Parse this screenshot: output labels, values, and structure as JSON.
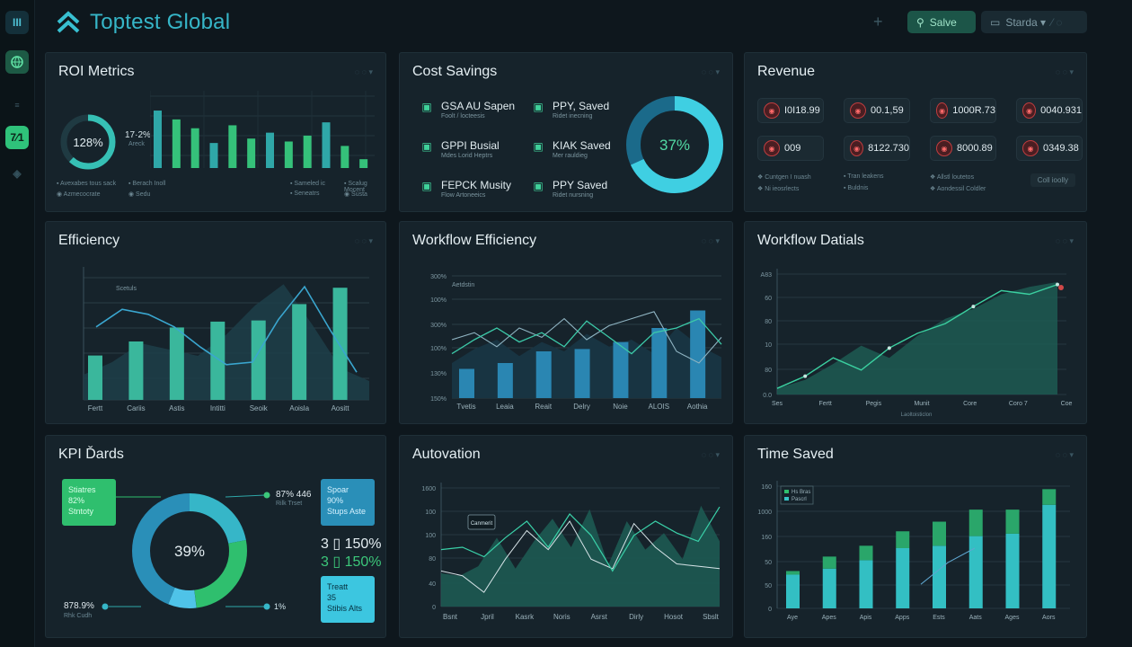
{
  "app": {
    "title": "Toptest Global"
  },
  "rail": {
    "items": [
      {
        "icon": "menu-icon",
        "label": "III"
      },
      {
        "icon": "globe-icon",
        "label": ""
      },
      {
        "icon": "list-icon",
        "label": ""
      },
      {
        "icon": "calendar-icon",
        "label": "7⁄1"
      },
      {
        "icon": "arrow-icon",
        "label": ""
      }
    ]
  },
  "toolbar": {
    "add_label": "+",
    "save_label": "Salve",
    "dropdown_label": "Starda ▾",
    "extra_label": "⁄ ◌"
  },
  "colors": {
    "accent": "#36b6c8",
    "green": "#3cc77a",
    "teal": "#2fa7a8",
    "panel": "#16232b",
    "bg": "#0e171d",
    "red": "#c03d3f"
  },
  "panels": {
    "roi": {
      "title": "ROI Metrics",
      "menu": "◌ ◌ ▾",
      "donut_value": "128%",
      "donut_fraction": 0.62,
      "side_value": "17·2%",
      "side_sub": "Areck",
      "bars": [
        0.78,
        0.66,
        0.54,
        0.34,
        0.58,
        0.4,
        0.48,
        0.36,
        0.44,
        0.62,
        0.3,
        0.12
      ],
      "legend": [
        {
          "text": "▪ Avexabes tous sack",
          "color": "#c03d3f"
        },
        {
          "text": "▪ Berach Inoll",
          "color": "#3cc77a"
        },
        {
          "text": "▪ Sameled ic",
          "color": "#2fa7a8"
        },
        {
          "text": "▪ Scalug Mocent",
          "color": "#3cc77a"
        },
        {
          "text": "◉ Azmecocrate",
          "color": "#2fa7a8"
        },
        {
          "text": "◉ Sedu",
          "color": "#9bb2bb"
        },
        {
          "text": "▪ Seneatrs",
          "color": "#c03d3f"
        },
        {
          "text": "◉ Susta",
          "color": "#9bb2bb"
        }
      ]
    },
    "cost": {
      "title": "Cost Savings",
      "menu": "◌ ◌ ▾",
      "items": [
        {
          "icon": "chart-icon",
          "l1": "GSA AU Sapen",
          "l2": "Foolt / locteesis"
        },
        {
          "icon": "tool-icon",
          "l1": "PPY, Saved",
          "l2": "Ridet inecning"
        },
        {
          "icon": "doc-icon",
          "l1": "GPPI Busial",
          "l2": "Mdes Lorid Heptrs"
        },
        {
          "icon": "gear-icon",
          "l1": "KIAK Saved",
          "l2": "Mer rauldieg"
        },
        {
          "icon": "clipboard-icon",
          "l1": "FEPCK Musity",
          "l2": "Flow Artoneeics"
        },
        {
          "icon": "box-icon",
          "l1": "PPY Saved",
          "l2": "Ridet nursning"
        }
      ],
      "donut_value": "37%",
      "donut_fraction": 0.68
    },
    "revenue": {
      "title": "Revenue",
      "menu": "◌ ◌ ▾",
      "pills": [
        "I0I18.99",
        "00.1,59",
        "1000R.73",
        "0040.931",
        "009",
        "8122.730",
        "8000.89",
        "0349.38"
      ],
      "legend": [
        "❖ Cuntgen I nuash",
        "▪ Tran leakens",
        "❖ Allstl loutetos",
        "❖ Ni ieosrlects",
        "▪ Buldnis",
        "❖ Aondessil Coldler"
      ],
      "button": "Coll ioolly"
    },
    "efficiency": {
      "title": "Efficiency",
      "menu": "◌ ◌ ▾",
      "categories": [
        "Fertt",
        "Cariis",
        "Astis",
        "Intitti",
        "Seoik",
        "Aoisla",
        "Aositt"
      ],
      "bars": [
        0.38,
        0.5,
        0.62,
        0.67,
        0.68,
        0.82,
        0.96
      ],
      "line": [
        0.58,
        0.72,
        0.68,
        0.58,
        0.42,
        0.28,
        0.3,
        0.64,
        0.9,
        0.55,
        0.22
      ],
      "area": [
        0.2,
        0.3,
        0.45,
        0.4,
        0.35,
        0.52,
        0.75,
        0.92,
        0.6,
        0.25,
        0.15
      ],
      "annotation": "Scetuls"
    },
    "workflow": {
      "title": "Workflow Efficiency",
      "menu": "◌ ◌ ▾",
      "ylabels": [
        "300%",
        "100%",
        "300%",
        "100%",
        "130%",
        "150%"
      ],
      "categories": [
        "Tvetis",
        "Leaia",
        "Reait",
        "Delry",
        "Noie",
        "ALOIS",
        "Aothia"
      ],
      "bars": [
        0.25,
        0.3,
        0.4,
        0.42,
        0.48,
        0.6,
        0.75
      ],
      "line1": [
        0.5,
        0.56,
        0.44,
        0.6,
        0.52,
        0.68,
        0.5,
        0.62,
        0.68,
        0.74,
        0.4,
        0.3,
        0.52
      ],
      "line2": [
        0.38,
        0.5,
        0.6,
        0.48,
        0.56,
        0.44,
        0.66,
        0.52,
        0.38,
        0.56,
        0.6,
        0.68,
        0.46
      ],
      "annotation": "Aetdstin"
    },
    "details": {
      "title": "Workflow Datials",
      "menu": "◌ ◌ ▾",
      "ylabels": [
        "A83",
        "60",
        "80",
        "10",
        "80",
        "0.0"
      ],
      "categories": [
        "Ses",
        "Fertt",
        "Pegis",
        "Munit",
        "Core",
        "Coro 7",
        "Coe"
      ],
      "xtitle": "Laoltoisticlon",
      "area": [
        0.05,
        0.12,
        0.25,
        0.4,
        0.3,
        0.48,
        0.62,
        0.7,
        0.82,
        0.88,
        0.92
      ],
      "line": [
        0.05,
        0.15,
        0.3,
        0.2,
        0.38,
        0.5,
        0.58,
        0.72,
        0.85,
        0.82,
        0.9
      ]
    },
    "kpi": {
      "title": "KPI Ďards",
      "donut_value": "39%",
      "left_box": [
        "Stiatres",
        "82%",
        "Stntoty"
      ],
      "right_box_top": [
        "Spoar",
        "90%",
        "Stups Aste"
      ],
      "right_box_bottom": [
        "Treatt",
        "35",
        "Stibis Alts"
      ],
      "callout_top": "87% 446",
      "callout_top_sub": "Rilk Trset",
      "stat1": "3  ▯ 150%",
      "stat2": "3  ▯ 150%",
      "callout_left": "878.9%",
      "callout_left_sub": "Rhk Cudh",
      "callout_right": "1%",
      "segments": [
        0.22,
        0.26,
        0.08,
        0.44
      ]
    },
    "automation": {
      "title": "Autovation",
      "menu": "◌ ◌ ▾",
      "ylabels": [
        "1600",
        "100",
        "100",
        "80",
        "40",
        "0"
      ],
      "categories": [
        "Bsnt",
        "Jpril",
        "Kasrk",
        "Noris",
        "Asrst",
        "Dirly",
        "Hosot",
        "Sbslt"
      ],
      "tooltip": "Canmerit",
      "area": [
        0.28,
        0.26,
        0.34,
        0.58,
        0.32,
        0.55,
        0.74,
        0.5,
        0.82,
        0.35,
        0.72,
        0.48,
        0.62,
        0.4,
        0.85,
        0.55
      ],
      "line1": [
        0.3,
        0.26,
        0.12,
        0.4,
        0.64,
        0.48,
        0.72,
        0.4,
        0.32,
        0.7,
        0.5,
        0.36,
        0.34,
        0.32
      ],
      "line2": [
        0.48,
        0.5,
        0.42,
        0.58,
        0.72,
        0.5,
        0.78,
        0.6,
        0.3,
        0.6,
        0.72,
        0.62,
        0.55,
        0.84
      ]
    },
    "time": {
      "title": "Time Saved",
      "menu": "◌ ◌ ▾",
      "legend": [
        "Hs Bras",
        "Pascrl"
      ],
      "ylabels": [
        "160",
        "1000",
        "160",
        "50",
        "50",
        "0"
      ],
      "categories": [
        "Aye",
        "Apes",
        "Apis",
        "Apps",
        "Ests",
        "Aats",
        "Ages",
        "Aors"
      ],
      "bars_bottom": [
        0.28,
        0.33,
        0.4,
        0.5,
        0.52,
        0.6,
        0.62,
        0.86
      ],
      "bars_top": [
        0.03,
        0.1,
        0.12,
        0.14,
        0.2,
        0.22,
        0.2,
        0.13
      ],
      "line": [
        0.2,
        0.38,
        0.5
      ]
    }
  }
}
